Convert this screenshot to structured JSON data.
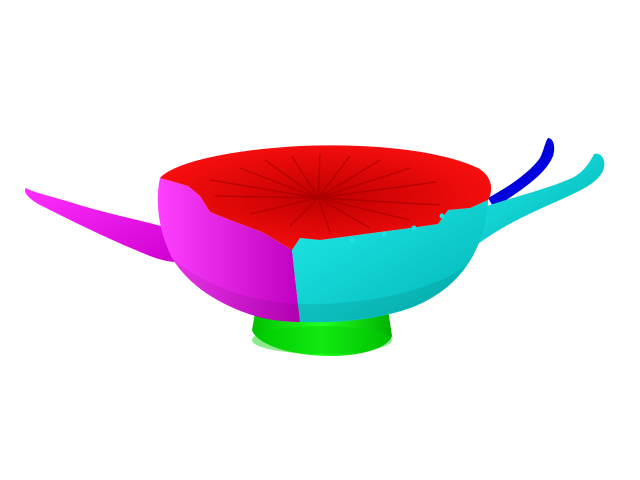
{
  "scene": {
    "background": "#ffffff",
    "object": "segmented-kylix-cup-mesh",
    "segments": [
      {
        "name": "bowl-interior",
        "color": "#e00000"
      },
      {
        "name": "bowl-left-outer",
        "color": "#e000e0"
      },
      {
        "name": "bowl-right-outer",
        "color": "#00dede"
      },
      {
        "name": "foot",
        "color": "#00e800"
      },
      {
        "name": "handle-left",
        "color": "#ee00ee"
      },
      {
        "name": "handle-right",
        "color": "#00e0e0"
      },
      {
        "name": "handle-back",
        "color": "#0000d8"
      }
    ]
  }
}
